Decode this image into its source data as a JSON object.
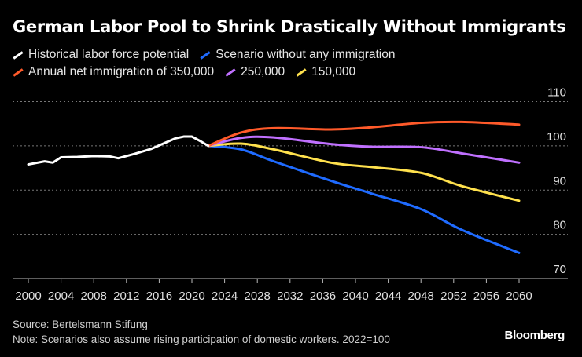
{
  "title": "German Labor Pool to Shrink Drastically Without Immigrants",
  "source": "Source: Bertelsmann Stifung",
  "note": "Note: Scenarios also assume rising participation of domestic workers. 2022=100",
  "brand": "Bloomberg",
  "chart_data": {
    "type": "line",
    "title": "German Labor Pool to Shrink Drastically Without Immigrants",
    "xlim": [
      2000,
      2060
    ],
    "ylim": [
      70,
      110
    ],
    "x_ticks": [
      "2000",
      "2004",
      "2008",
      "2012",
      "2016",
      "2020",
      "2024",
      "2028",
      "2032",
      "2036",
      "2040",
      "2044",
      "2048",
      "2052",
      "2056",
      "2060"
    ],
    "y_ticks": [
      "110",
      "100",
      "90",
      "80",
      "70"
    ],
    "grid": "horizontal dotted",
    "legend": "top-left",
    "series": [
      {
        "name": "Historical labor force potential",
        "color": "#ffffff",
        "x": [
          2000,
          2002,
          2003,
          2004,
          2006,
          2008,
          2010,
          2011,
          2013,
          2015,
          2017,
          2018,
          2019,
          2020,
          2021,
          2022
        ],
        "y": [
          95.8,
          96.5,
          96.2,
          97.4,
          97.5,
          97.7,
          97.6,
          97.2,
          98.2,
          99.3,
          100.9,
          101.7,
          102.1,
          102.1,
          101.1,
          100
        ]
      },
      {
        "name": "Scenario without any immigration",
        "color": "#1f6bff",
        "x": [
          2022,
          2026,
          2030,
          2037,
          2042,
          2048,
          2053,
          2060
        ],
        "y": [
          100,
          99.2,
          96.5,
          92.1,
          89.2,
          85.7,
          81.0,
          75.8
        ]
      },
      {
        "name": "Annual net immigration of 350,000",
        "color": "#ff5a2a",
        "x": [
          2022,
          2026,
          2030,
          2037,
          2042,
          2048,
          2053,
          2060
        ],
        "y": [
          100,
          103.0,
          104.0,
          103.7,
          104.2,
          105.2,
          105.4,
          104.8
        ]
      },
      {
        "name": "250,000",
        "color": "#c070ff",
        "x": [
          2022,
          2026,
          2030,
          2037,
          2042,
          2048,
          2053,
          2060
        ],
        "y": [
          100,
          101.8,
          101.9,
          100.4,
          99.8,
          99.7,
          98.3,
          96.2
        ]
      },
      {
        "name": "150,000",
        "color": "#ffe14d",
        "x": [
          2022,
          2026,
          2030,
          2037,
          2042,
          2048,
          2053,
          2060
        ],
        "y": [
          100,
          100.5,
          99.2,
          96.2,
          95.2,
          93.9,
          90.9,
          87.6
        ]
      }
    ]
  }
}
